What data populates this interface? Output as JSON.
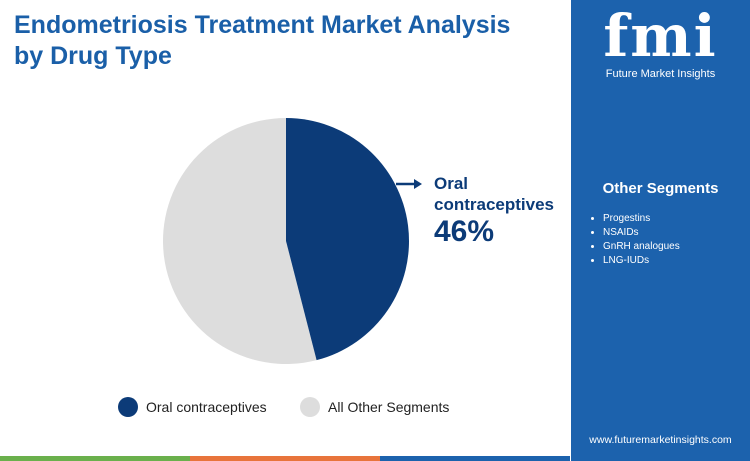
{
  "chart_data": {
    "type": "pie",
    "title": "Endometriosis Treatment Market Analysis by Drug Type",
    "categories": [
      "Oral contraceptives",
      "All Other Segments"
    ],
    "values": [
      46,
      54
    ],
    "value_labels": [
      "46%",
      null
    ],
    "colors": [
      "#0c3b78",
      "#dddddd"
    ]
  },
  "sidebar": {
    "logo": "fmi",
    "logo_tagline": "Future Market Insights",
    "heading": "Other Segments",
    "items": [
      "Progestins",
      "NSAIDs",
      "GnRH analogues",
      "LNG-IUDs"
    ],
    "website": "www.futuremarketinsights.com"
  }
}
